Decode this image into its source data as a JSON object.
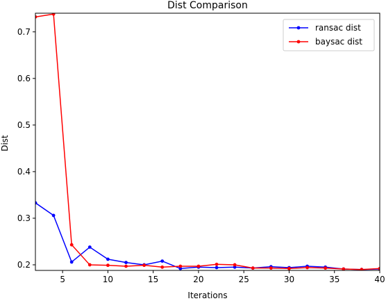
{
  "chart_data": {
    "type": "line",
    "title": "Dist Comparison",
    "xlabel": "Iterations",
    "ylabel": "Dist",
    "xlim": [
      2,
      40
    ],
    "ylim": [
      0.188,
      0.74
    ],
    "xticks": [
      5,
      10,
      15,
      20,
      25,
      30,
      35,
      40
    ],
    "yticks": [
      0.2,
      0.3,
      0.4,
      0.5,
      0.6,
      0.7
    ],
    "grid": false,
    "legend_position": "top-right",
    "x": [
      2,
      4,
      6,
      8,
      10,
      12,
      14,
      16,
      18,
      20,
      22,
      24,
      26,
      28,
      30,
      32,
      34,
      36,
      38,
      40
    ],
    "series": [
      {
        "name": "ransac dist",
        "color": "#0000ff",
        "values": [
          0.333,
          0.306,
          0.206,
          0.238,
          0.212,
          0.205,
          0.2,
          0.208,
          0.192,
          0.195,
          0.194,
          0.195,
          0.193,
          0.196,
          0.194,
          0.197,
          0.195,
          0.191,
          0.19,
          0.191
        ]
      },
      {
        "name": "baysac dist",
        "color": "#ff0000",
        "values": [
          0.732,
          0.738,
          0.243,
          0.2,
          0.199,
          0.197,
          0.199,
          0.195,
          0.197,
          0.197,
          0.201,
          0.2,
          0.193,
          0.193,
          0.192,
          0.194,
          0.193,
          0.191,
          0.19,
          0.192
        ]
      }
    ]
  }
}
